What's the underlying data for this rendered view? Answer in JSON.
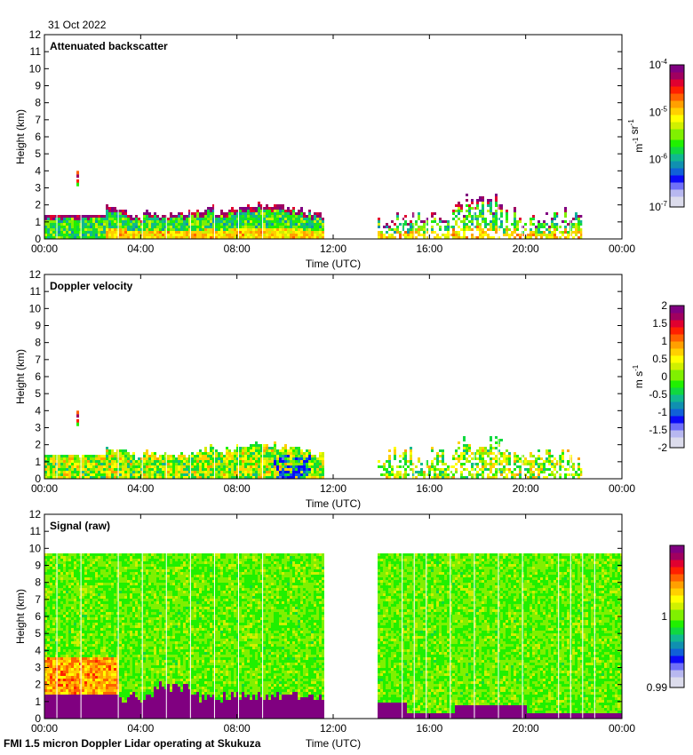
{
  "header": {
    "date": "31 Oct 2022"
  },
  "footer": {
    "caption": "FMI 1.5 micron Doppler Lidar operating at Skukuza"
  },
  "colors": {
    "colormap": [
      "#dcdcec",
      "#b8b8f0",
      "#7070f8",
      "#0a0af8",
      "#1060d8",
      "#1090b0",
      "#10b890",
      "#10d840",
      "#20f000",
      "#80f000",
      "#d0f000",
      "#ffff00",
      "#ffd000",
      "#ffa000",
      "#ff6000",
      "#ff2000",
      "#e00030",
      "#a00060",
      "#800080"
    ],
    "missing": "#ffffff",
    "frame": "#000000"
  },
  "chart_data": [
    {
      "type": "heatmap",
      "title": "Attenuated backscatter",
      "xlabel": "Time (UTC)",
      "ylabel": "Height (km)",
      "xlim": [
        0,
        24
      ],
      "ylim": [
        0,
        12
      ],
      "xticks": [
        "00:00",
        "04:00",
        "08:00",
        "12:00",
        "16:00",
        "20:00",
        "00:00"
      ],
      "yticks": [
        "0",
        "1",
        "2",
        "3",
        "4",
        "5",
        "6",
        "7",
        "8",
        "9",
        "10",
        "11",
        "12"
      ],
      "colorbar": {
        "label": "m-1 sr-1",
        "scale": "log",
        "range": [
          1e-07,
          0.0001
        ],
        "ticks": [
          "10-7",
          "10-6",
          "10-5",
          "10-4"
        ]
      },
      "data_gaps_utc": [
        [
          11.55,
          13.75
        ]
      ],
      "features": [
        {
          "description_time_utc": [
            0.0,
            11.55
          ],
          "layer_top_km": [
            1.2,
            1.8
          ],
          "value_range": [
            1e-06,
            0.0001
          ]
        },
        {
          "description_time_utc": [
            13.75,
            22.2
          ],
          "layer_top_km": [
            0.3,
            2.3
          ],
          "value_range": [
            1e-07,
            0.0001
          ]
        },
        {
          "description_time_utc": [
            1.3,
            1.4
          ],
          "layer_top_km": [
            3.2,
            3.9
          ],
          "value_range": [
            1e-05,
            0.0001
          ]
        }
      ]
    },
    {
      "type": "heatmap",
      "title": "Doppler velocity",
      "xlabel": "Time (UTC)",
      "ylabel": "Height (km)",
      "xlim": [
        0,
        24
      ],
      "ylim": [
        0,
        12
      ],
      "xticks": [
        "00:00",
        "04:00",
        "08:00",
        "12:00",
        "16:00",
        "20:00",
        "00:00"
      ],
      "yticks": [
        "0",
        "1",
        "2",
        "3",
        "4",
        "5",
        "6",
        "7",
        "8",
        "9",
        "10",
        "11",
        "12"
      ],
      "colorbar": {
        "label": "m s-1",
        "scale": "linear",
        "range": [
          -2,
          2
        ],
        "ticks": [
          "-2",
          "-1.5",
          "-1",
          "-0.5",
          "0",
          "0.5",
          "1",
          "1.5",
          "2"
        ]
      },
      "data_gaps_utc": [
        [
          11.55,
          13.75
        ]
      ]
    },
    {
      "type": "heatmap",
      "title": "Signal (raw)",
      "xlabel": "Time (UTC)",
      "ylabel": "Height (km)",
      "xlim": [
        0,
        24
      ],
      "ylim": [
        0,
        12
      ],
      "xticks": [
        "00:00",
        "04:00",
        "08:00",
        "12:00",
        "16:00",
        "20:00",
        "00:00"
      ],
      "yticks": [
        "0",
        "1",
        "2",
        "3",
        "4",
        "5",
        "6",
        "7",
        "8",
        "9",
        "10",
        "11",
        "12"
      ],
      "colorbar": {
        "label": "",
        "scale": "linear",
        "range": [
          0.99,
          1.01
        ],
        "ticks": [
          "0.99",
          "1"
        ]
      },
      "data_top_km": 9.6,
      "data_gaps_utc": [
        [
          11.55,
          13.75
        ]
      ]
    }
  ]
}
